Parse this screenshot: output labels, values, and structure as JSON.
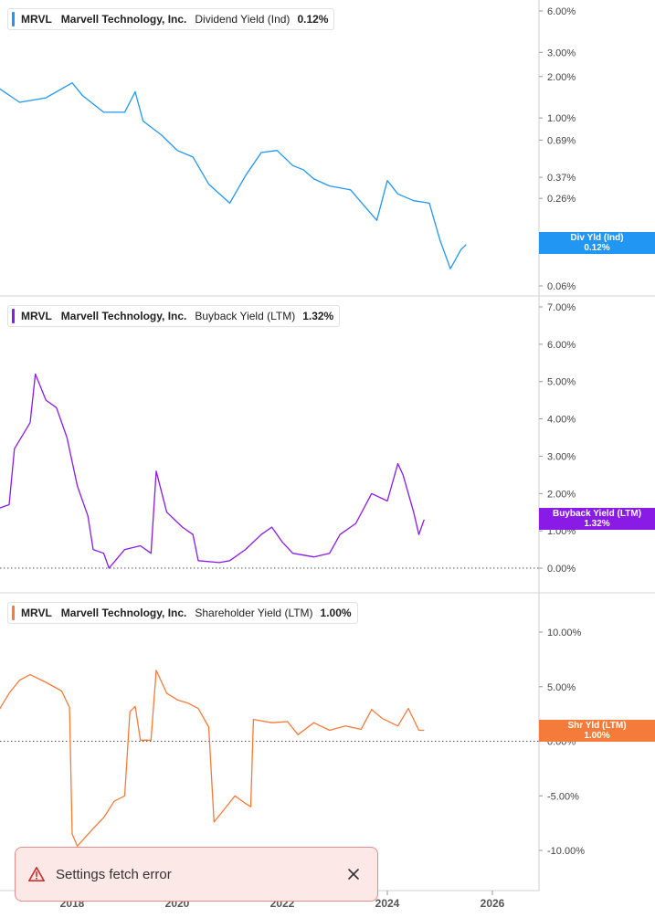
{
  "chart_data": [
    {
      "type": "line",
      "ticker": "MRVL",
      "company": "Marvell Technology, Inc.",
      "metric": "Dividend Yield (Ind)",
      "value": "0.12%",
      "tag": [
        "Div Yld (Ind)",
        "0.12%"
      ],
      "color": "#2196f3",
      "scale": "log",
      "ylim": [
        0.05,
        7
      ],
      "yticks": [
        6,
        3,
        2,
        1,
        0.69,
        0.37,
        0.26,
        0.06
      ],
      "ytick_labels": [
        "6.00%",
        "3.00%",
        "2.00%",
        "1.00%",
        "0.69%",
        "0.37%",
        "0.26%",
        "0.06%"
      ],
      "ghost_tick_labels": [
        "0.1",
        "0.11%"
      ],
      "points": [
        [
          2016.0,
          2.2
        ],
        [
          2016.5,
          1.75
        ],
        [
          2017.0,
          1.3
        ],
        [
          2017.5,
          1.4
        ],
        [
          2018.0,
          1.8
        ],
        [
          2018.2,
          1.45
        ],
        [
          2018.6,
          1.1
        ],
        [
          2019.0,
          1.1
        ],
        [
          2019.2,
          1.55
        ],
        [
          2019.35,
          0.95
        ],
        [
          2019.7,
          0.75
        ],
        [
          2020.0,
          0.58
        ],
        [
          2020.3,
          0.52
        ],
        [
          2020.6,
          0.33
        ],
        [
          2021.0,
          0.24
        ],
        [
          2021.3,
          0.38
        ],
        [
          2021.6,
          0.56
        ],
        [
          2021.9,
          0.58
        ],
        [
          2022.2,
          0.45
        ],
        [
          2022.4,
          0.42
        ],
        [
          2022.6,
          0.36
        ],
        [
          2022.9,
          0.32
        ],
        [
          2023.3,
          0.3
        ],
        [
          2023.6,
          0.22
        ],
        [
          2023.8,
          0.18
        ],
        [
          2024.0,
          0.35
        ],
        [
          2024.2,
          0.28
        ],
        [
          2024.5,
          0.25
        ],
        [
          2024.8,
          0.24
        ],
        [
          2025.0,
          0.13
        ],
        [
          2025.2,
          0.08
        ],
        [
          2025.4,
          0.11
        ],
        [
          2025.5,
          0.12
        ]
      ]
    },
    {
      "type": "line",
      "ticker": "MRVL",
      "company": "Marvell Technology, Inc.",
      "metric": "Buyback Yield (LTM)",
      "value": "1.32%",
      "tag": [
        "Buyback Yield (LTM)",
        "1.32%"
      ],
      "color": "#8a1ae6",
      "ylim": [
        -0.5,
        7
      ],
      "yticks": [
        7,
        6,
        5,
        4,
        3,
        2,
        1,
        0
      ],
      "ytick_labels": [
        "7.00%",
        "6.00%",
        "5.00%",
        "4.00%",
        "3.00%",
        "2.00%",
        "1.00%",
        "0.00%"
      ],
      "zero_line": true,
      "points": [
        [
          2016.0,
          3.2
        ],
        [
          2016.05,
          0.9
        ],
        [
          2016.5,
          0.5
        ],
        [
          2016.6,
          1.6
        ],
        [
          2016.8,
          1.7
        ],
        [
          2016.9,
          3.2
        ],
        [
          2017.2,
          3.9
        ],
        [
          2017.3,
          5.2
        ],
        [
          2017.5,
          4.5
        ],
        [
          2017.7,
          4.3
        ],
        [
          2017.9,
          3.5
        ],
        [
          2018.1,
          2.2
        ],
        [
          2018.3,
          1.4
        ],
        [
          2018.4,
          0.5
        ],
        [
          2018.6,
          0.4
        ],
        [
          2018.7,
          0.0
        ],
        [
          2019.0,
          0.5
        ],
        [
          2019.3,
          0.6
        ],
        [
          2019.5,
          0.4
        ],
        [
          2019.6,
          2.6
        ],
        [
          2019.8,
          1.5
        ],
        [
          2020.1,
          1.1
        ],
        [
          2020.3,
          0.9
        ],
        [
          2020.4,
          0.2
        ],
        [
          2020.8,
          0.15
        ],
        [
          2021.0,
          0.2
        ],
        [
          2021.3,
          0.5
        ],
        [
          2021.6,
          0.9
        ],
        [
          2021.8,
          1.1
        ],
        [
          2022.0,
          0.7
        ],
        [
          2022.2,
          0.4
        ],
        [
          2022.6,
          0.3
        ],
        [
          2022.9,
          0.4
        ],
        [
          2023.1,
          0.9
        ],
        [
          2023.4,
          1.2
        ],
        [
          2023.7,
          2.0
        ],
        [
          2024.0,
          1.8
        ],
        [
          2024.2,
          2.8
        ],
        [
          2024.3,
          2.5
        ],
        [
          2024.5,
          1.5
        ],
        [
          2024.6,
          0.9
        ],
        [
          2024.7,
          1.3
        ]
      ]
    },
    {
      "type": "line",
      "ticker": "MRVL",
      "company": "Marvell Technology, Inc.",
      "metric": "Shareholder Yield (LTM)",
      "value": "1.00%",
      "tag": [
        "Shr Yld (LTM)",
        "1.00%"
      ],
      "color": "#f47b3a",
      "ylim": [
        -12,
        12
      ],
      "yticks": [
        10,
        5,
        0,
        -5,
        -10
      ],
      "ytick_labels": [
        "10.00%",
        "5.00%",
        "0.00%",
        "-5.00%",
        "-10.00%"
      ],
      "zero_line": true,
      "points": [
        [
          2016.0,
          5.5
        ],
        [
          2016.1,
          2.7
        ],
        [
          2016.6,
          2.8
        ],
        [
          2016.8,
          4.4
        ],
        [
          2017.0,
          5.6
        ],
        [
          2017.2,
          6.1
        ],
        [
          2017.5,
          5.4
        ],
        [
          2017.8,
          4.6
        ],
        [
          2017.95,
          3.1
        ],
        [
          2018.0,
          -8.5
        ],
        [
          2018.1,
          -9.6
        ],
        [
          2018.4,
          -8.0
        ],
        [
          2018.6,
          -7.0
        ],
        [
          2018.8,
          -5.5
        ],
        [
          2019.0,
          -5.0
        ],
        [
          2019.1,
          2.7
        ],
        [
          2019.2,
          3.2
        ],
        [
          2019.3,
          0.1
        ],
        [
          2019.5,
          0.1
        ],
        [
          2019.6,
          6.5
        ],
        [
          2019.8,
          4.4
        ],
        [
          2020.0,
          3.8
        ],
        [
          2020.2,
          3.5
        ],
        [
          2020.4,
          3.0
        ],
        [
          2020.6,
          1.3
        ],
        [
          2020.7,
          -7.4
        ],
        [
          2020.9,
          -6.2
        ],
        [
          2021.1,
          -5.0
        ],
        [
          2021.3,
          -5.7
        ],
        [
          2021.4,
          -6.0
        ],
        [
          2021.45,
          2.0
        ],
        [
          2021.8,
          1.7
        ],
        [
          2022.1,
          1.8
        ],
        [
          2022.3,
          0.6
        ],
        [
          2022.6,
          1.7
        ],
        [
          2022.9,
          1.0
        ],
        [
          2023.2,
          1.4
        ],
        [
          2023.5,
          1.1
        ],
        [
          2023.7,
          2.9
        ],
        [
          2023.9,
          2.1
        ],
        [
          2024.2,
          1.4
        ],
        [
          2024.4,
          3.0
        ],
        [
          2024.6,
          1.0
        ],
        [
          2024.7,
          1.0
        ]
      ]
    }
  ],
  "x_axis": {
    "ticks": [
      2018,
      2020,
      2022,
      2024,
      2026
    ],
    "labels": [
      "2018",
      "2020",
      "2022",
      "2024",
      "2026"
    ]
  },
  "toast": {
    "message": "Settings fetch error",
    "icon": "warning-triangle-icon",
    "close_icon": "close-icon"
  },
  "colors": {
    "div_yield": "#2196f3",
    "buyback_yield": "#8a1ae6",
    "shareholder_yield": "#f47b3a",
    "toast_bg": "#fde8e8",
    "toast_border": "#e58b8b",
    "toast_icon": "#d32f2f"
  }
}
